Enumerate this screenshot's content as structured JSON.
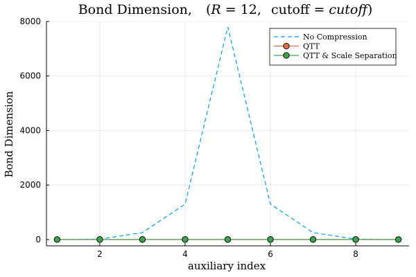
{
  "chart_data": {
    "type": "line",
    "title": "Bond Dimension,  (R = 12,  cutoff = cutoff)",
    "title_parts": {
      "prefix": "Bond Dimension,",
      "open": "(",
      "r_var": "R",
      "r_eq": " = 12,",
      "cutoff_word": "cutoff",
      "cutoff_eq": " = ",
      "cutoff_var": "cutoff",
      "close": ")"
    },
    "xlabel": "auxiliary index",
    "ylabel": "Bond Dimension",
    "xlim": [
      0.75,
      9.25
    ],
    "ylim": [
      -230,
      8000
    ],
    "xticks": [
      2,
      4,
      6,
      8
    ],
    "yticks": [
      0,
      2000,
      4000,
      6000,
      8000
    ],
    "grid": true,
    "legend_position": "top-right",
    "x": [
      1,
      2,
      3,
      4,
      5,
      6,
      7,
      8,
      9
    ],
    "series": [
      {
        "name": "No Compression",
        "values": [
          2,
          16,
          256,
          1300,
          7800,
          1300,
          256,
          16,
          2
        ],
        "color": "#009af9",
        "style": "dashed",
        "marker": "none"
      },
      {
        "name": "QTT",
        "values": [
          2,
          4,
          4,
          4,
          4,
          4,
          4,
          4,
          2
        ],
        "color": "#e26f46",
        "style": "solid",
        "marker": "circle"
      },
      {
        "name": "QTT & Scale Separation",
        "values": [
          2,
          4,
          4,
          4,
          4,
          4,
          4,
          4,
          2
        ],
        "color": "#3da44d",
        "style": "solid",
        "marker": "circle"
      }
    ]
  }
}
